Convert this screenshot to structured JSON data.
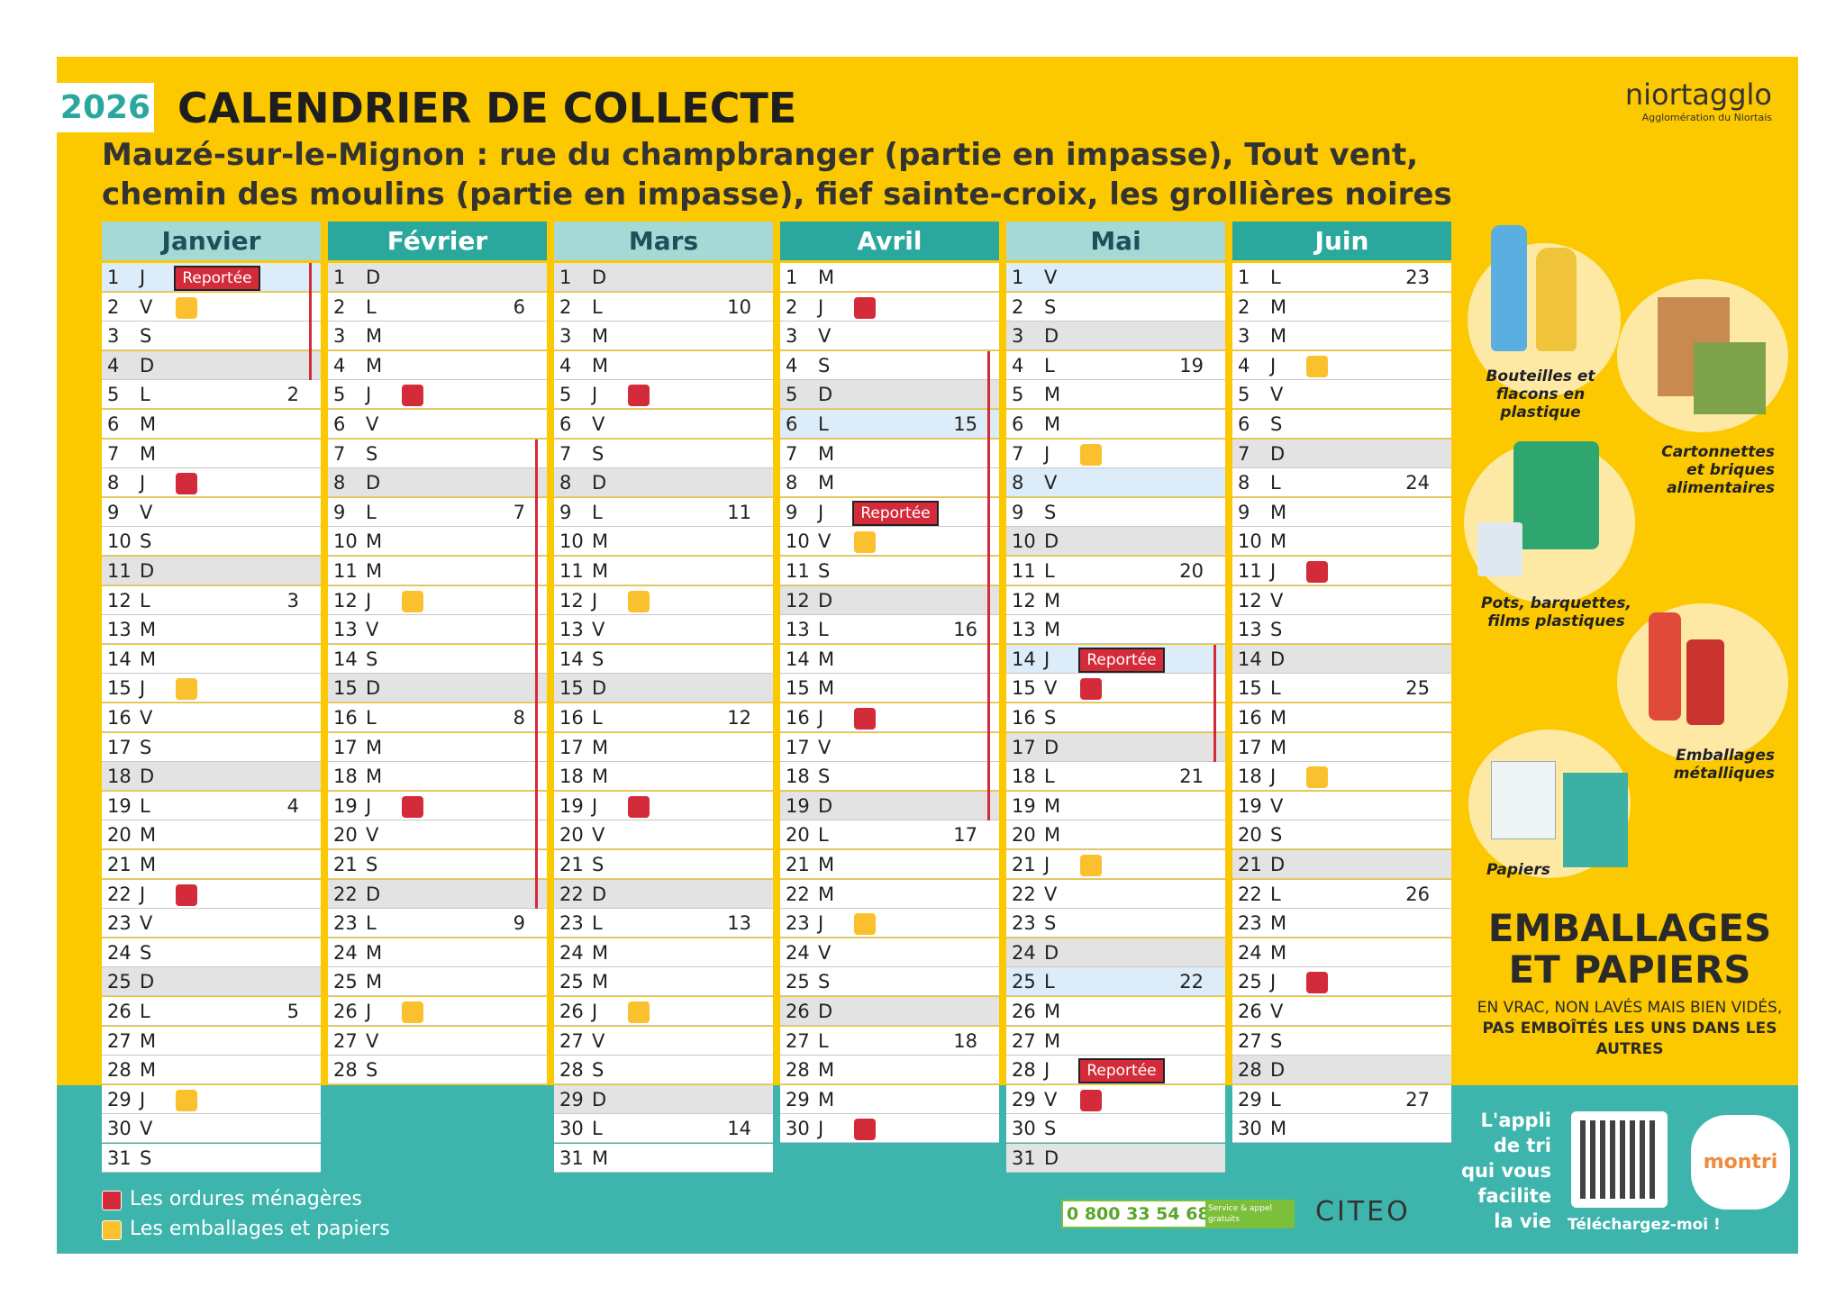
{
  "header": {
    "year": "2026",
    "title": "CALENDRIER DE COLLECTE",
    "subtitle": [
      "Mauzé-sur-le-Mignon : rue du champbranger (partie en impasse), Tout vent,",
      "chemin des moulins (partie en impasse), fief sainte-croix, les grollières noires"
    ],
    "brand": "niortagglo",
    "brand_sub": "Agglomération du Niortais"
  },
  "row_colors": {
    "gray": "#e3e3e3",
    "blue": "#dcecf8"
  },
  "legend": {
    "items": [
      {
        "label": "Les ordures ménagères",
        "color": "#d42b3a"
      },
      {
        "label": "Les emballages et papiers",
        "color": "#fbc02d"
      }
    ]
  },
  "months": [
    {
      "name": "Janvier",
      "days": [
        [
          1,
          "J",
          {
            "r": "Reportée",
            "row": "blue",
            "v": true
          }
        ],
        [
          2,
          "V",
          {
            "c": 1,
            "v": true
          }
        ],
        [
          3,
          "S",
          {
            "v": true
          }
        ],
        [
          4,
          "D",
          {
            "row": "gray",
            "v": true
          }
        ],
        [
          5,
          "L",
          {
            "wk": 2
          }
        ],
        [
          6,
          "M"
        ],
        [
          7,
          "M"
        ],
        [
          8,
          "J",
          {
            "c": 0
          }
        ],
        [
          9,
          "V"
        ],
        [
          10,
          "S"
        ],
        [
          11,
          "D",
          {
            "row": "gray"
          }
        ],
        [
          12,
          "L",
          {
            "wk": 3
          }
        ],
        [
          13,
          "M"
        ],
        [
          14,
          "M"
        ],
        [
          15,
          "J",
          {
            "c": 1
          }
        ],
        [
          16,
          "V"
        ],
        [
          17,
          "S"
        ],
        [
          18,
          "D",
          {
            "row": "gray"
          }
        ],
        [
          19,
          "L",
          {
            "wk": 4
          }
        ],
        [
          20,
          "M"
        ],
        [
          21,
          "M"
        ],
        [
          22,
          "J",
          {
            "c": 0
          }
        ],
        [
          23,
          "V"
        ],
        [
          24,
          "S"
        ],
        [
          25,
          "D",
          {
            "row": "gray"
          }
        ],
        [
          26,
          "L",
          {
            "wk": 5
          }
        ],
        [
          27,
          "M"
        ],
        [
          28,
          "M"
        ],
        [
          29,
          "J",
          {
            "c": 1
          }
        ],
        [
          30,
          "V"
        ],
        [
          31,
          "S"
        ]
      ]
    },
    {
      "name": "Février",
      "days": [
        [
          1,
          "D",
          {
            "row": "gray"
          }
        ],
        [
          2,
          "L",
          {
            "wk": 6
          }
        ],
        [
          3,
          "M"
        ],
        [
          4,
          "M"
        ],
        [
          5,
          "J",
          {
            "c": 0
          }
        ],
        [
          6,
          "V"
        ],
        [
          7,
          "S",
          {
            "v": true
          }
        ],
        [
          8,
          "D",
          {
            "row": "gray",
            "v": true
          }
        ],
        [
          9,
          "L",
          {
            "wk": 7,
            "v": true
          }
        ],
        [
          10,
          "M",
          {
            "v": true
          }
        ],
        [
          11,
          "M",
          {
            "v": true
          }
        ],
        [
          12,
          "J",
          {
            "c": 1,
            "v": true
          }
        ],
        [
          13,
          "V",
          {
            "v": true
          }
        ],
        [
          14,
          "S",
          {
            "v": true
          }
        ],
        [
          15,
          "D",
          {
            "row": "gray",
            "v": true
          }
        ],
        [
          16,
          "L",
          {
            "wk": 8,
            "v": true
          }
        ],
        [
          17,
          "M",
          {
            "v": true
          }
        ],
        [
          18,
          "M",
          {
            "v": true
          }
        ],
        [
          19,
          "J",
          {
            "c": 0,
            "v": true
          }
        ],
        [
          20,
          "V",
          {
            "v": true
          }
        ],
        [
          21,
          "S",
          {
            "v": true
          }
        ],
        [
          22,
          "D",
          {
            "row": "gray",
            "v": true
          }
        ],
        [
          23,
          "L",
          {
            "wk": 9
          }
        ],
        [
          24,
          "M"
        ],
        [
          25,
          "M"
        ],
        [
          26,
          "J",
          {
            "c": 1
          }
        ],
        [
          27,
          "V"
        ],
        [
          28,
          "S"
        ]
      ]
    },
    {
      "name": "Mars",
      "days": [
        [
          1,
          "D",
          {
            "row": "gray"
          }
        ],
        [
          2,
          "L",
          {
            "wk": 10
          }
        ],
        [
          3,
          "M"
        ],
        [
          4,
          "M"
        ],
        [
          5,
          "J",
          {
            "c": 0
          }
        ],
        [
          6,
          "V"
        ],
        [
          7,
          "S"
        ],
        [
          8,
          "D",
          {
            "row": "gray"
          }
        ],
        [
          9,
          "L",
          {
            "wk": 11
          }
        ],
        [
          10,
          "M"
        ],
        [
          11,
          "M"
        ],
        [
          12,
          "J",
          {
            "c": 1
          }
        ],
        [
          13,
          "V"
        ],
        [
          14,
          "S"
        ],
        [
          15,
          "D",
          {
            "row": "gray"
          }
        ],
        [
          16,
          "L",
          {
            "wk": 12
          }
        ],
        [
          17,
          "M"
        ],
        [
          18,
          "M"
        ],
        [
          19,
          "J",
          {
            "c": 0
          }
        ],
        [
          20,
          "V"
        ],
        [
          21,
          "S"
        ],
        [
          22,
          "D",
          {
            "row": "gray"
          }
        ],
        [
          23,
          "L",
          {
            "wk": 13
          }
        ],
        [
          24,
          "M"
        ],
        [
          25,
          "M"
        ],
        [
          26,
          "J",
          {
            "c": 1
          }
        ],
        [
          27,
          "V"
        ],
        [
          28,
          "S"
        ],
        [
          29,
          "D",
          {
            "row": "gray"
          }
        ],
        [
          30,
          "L",
          {
            "wk": 14
          }
        ],
        [
          31,
          "M"
        ]
      ]
    },
    {
      "name": "Avril",
      "days": [
        [
          1,
          "M"
        ],
        [
          2,
          "J",
          {
            "c": 0
          }
        ],
        [
          3,
          "V"
        ],
        [
          4,
          "S",
          {
            "v": true
          }
        ],
        [
          5,
          "D",
          {
            "row": "gray",
            "v": true
          }
        ],
        [
          6,
          "L",
          {
            "wk": 15,
            "row": "blue",
            "v": true
          }
        ],
        [
          7,
          "M",
          {
            "v": true
          }
        ],
        [
          8,
          "M",
          {
            "v": true
          }
        ],
        [
          9,
          "J",
          {
            "r": "Reportée",
            "v": true
          }
        ],
        [
          10,
          "V",
          {
            "c": 1,
            "v": true
          }
        ],
        [
          11,
          "S",
          {
            "v": true
          }
        ],
        [
          12,
          "D",
          {
            "row": "gray",
            "v": true
          }
        ],
        [
          13,
          "L",
          {
            "wk": 16,
            "v": true
          }
        ],
        [
          14,
          "M",
          {
            "v": true
          }
        ],
        [
          15,
          "M",
          {
            "v": true
          }
        ],
        [
          16,
          "J",
          {
            "c": 0,
            "v": true
          }
        ],
        [
          17,
          "V",
          {
            "v": true
          }
        ],
        [
          18,
          "S",
          {
            "v": true
          }
        ],
        [
          19,
          "D",
          {
            "row": "gray",
            "v": true
          }
        ],
        [
          20,
          "L",
          {
            "wk": 17
          }
        ],
        [
          21,
          "M"
        ],
        [
          22,
          "M"
        ],
        [
          23,
          "J",
          {
            "c": 1
          }
        ],
        [
          24,
          "V"
        ],
        [
          25,
          "S"
        ],
        [
          26,
          "D",
          {
            "row": "gray"
          }
        ],
        [
          27,
          "L",
          {
            "wk": 18
          }
        ],
        [
          28,
          "M"
        ],
        [
          29,
          "M"
        ],
        [
          30,
          "J",
          {
            "c": 0
          }
        ]
      ]
    },
    {
      "name": "Mai",
      "days": [
        [
          1,
          "V",
          {
            "row": "blue"
          }
        ],
        [
          2,
          "S"
        ],
        [
          3,
          "D",
          {
            "row": "gray"
          }
        ],
        [
          4,
          "L",
          {
            "wk": 19
          }
        ],
        [
          5,
          "M"
        ],
        [
          6,
          "M"
        ],
        [
          7,
          "J",
          {
            "c": 1
          }
        ],
        [
          8,
          "V",
          {
            "row": "blue"
          }
        ],
        [
          9,
          "S"
        ],
        [
          10,
          "D",
          {
            "row": "gray"
          }
        ],
        [
          11,
          "L",
          {
            "wk": 20
          }
        ],
        [
          12,
          "M"
        ],
        [
          13,
          "M"
        ],
        [
          14,
          "J",
          {
            "r": "Reportée",
            "row": "blue",
            "v": true
          }
        ],
        [
          15,
          "V",
          {
            "c": 0,
            "v": true
          }
        ],
        [
          16,
          "S",
          {
            "v": true
          }
        ],
        [
          17,
          "D",
          {
            "row": "gray",
            "v": true
          }
        ],
        [
          18,
          "L",
          {
            "wk": 21
          }
        ],
        [
          19,
          "M"
        ],
        [
          20,
          "M"
        ],
        [
          21,
          "J",
          {
            "c": 1
          }
        ],
        [
          22,
          "V"
        ],
        [
          23,
          "S"
        ],
        [
          24,
          "D",
          {
            "row": "gray"
          }
        ],
        [
          25,
          "L",
          {
            "wk": 22,
            "row": "blue"
          }
        ],
        [
          26,
          "M"
        ],
        [
          27,
          "M"
        ],
        [
          28,
          "J",
          {
            "r": "Reportée"
          }
        ],
        [
          29,
          "V",
          {
            "c": 0
          }
        ],
        [
          30,
          "S"
        ],
        [
          31,
          "D",
          {
            "row": "gray"
          }
        ]
      ]
    },
    {
      "name": "Juin",
      "days": [
        [
          1,
          "L",
          {
            "wk": 23
          }
        ],
        [
          2,
          "M"
        ],
        [
          3,
          "M"
        ],
        [
          4,
          "J",
          {
            "c": 1
          }
        ],
        [
          5,
          "V"
        ],
        [
          6,
          "S"
        ],
        [
          7,
          "D",
          {
            "row": "gray"
          }
        ],
        [
          8,
          "L",
          {
            "wk": 24
          }
        ],
        [
          9,
          "M"
        ],
        [
          10,
          "M"
        ],
        [
          11,
          "J",
          {
            "c": 0
          }
        ],
        [
          12,
          "V"
        ],
        [
          13,
          "S"
        ],
        [
          14,
          "D",
          {
            "row": "gray"
          }
        ],
        [
          15,
          "L",
          {
            "wk": 25
          }
        ],
        [
          16,
          "M"
        ],
        [
          17,
          "M"
        ],
        [
          18,
          "J",
          {
            "c": 1
          }
        ],
        [
          19,
          "V"
        ],
        [
          20,
          "S"
        ],
        [
          21,
          "D",
          {
            "row": "gray"
          }
        ],
        [
          22,
          "L",
          {
            "wk": 26
          }
        ],
        [
          23,
          "M"
        ],
        [
          24,
          "M"
        ],
        [
          25,
          "J",
          {
            "c": 0
          }
        ],
        [
          26,
          "V"
        ],
        [
          27,
          "S"
        ],
        [
          28,
          "D",
          {
            "row": "gray"
          }
        ],
        [
          29,
          "L",
          {
            "wk": 27
          }
        ],
        [
          30,
          "M"
        ]
      ]
    }
  ],
  "sorting": {
    "categories": [
      "Bouteilles et flacons en plastique",
      "Cartonnettes et briques alimentaires",
      "Pots, barquettes, films plastiques",
      "Emballages métalliques",
      "Papiers"
    ],
    "heading": [
      "EMBALLAGES",
      "ET PAPIERS"
    ],
    "note": "EN VRAC, NON LAVÉS MAIS BIEN VIDÉS,",
    "note_bold": "PAS EMBOÎTÉS LES UNS DANS LES AUTRES"
  },
  "footer": {
    "phone": "0 800 33 54 68",
    "phone_note": "Service & appel gratuits",
    "partner": "CITEO",
    "app_text": [
      "L'appli",
      "de tri",
      "qui vous",
      "facilite",
      "la vie"
    ],
    "download": "Téléchargez-moi !",
    "app_name": "montri"
  }
}
